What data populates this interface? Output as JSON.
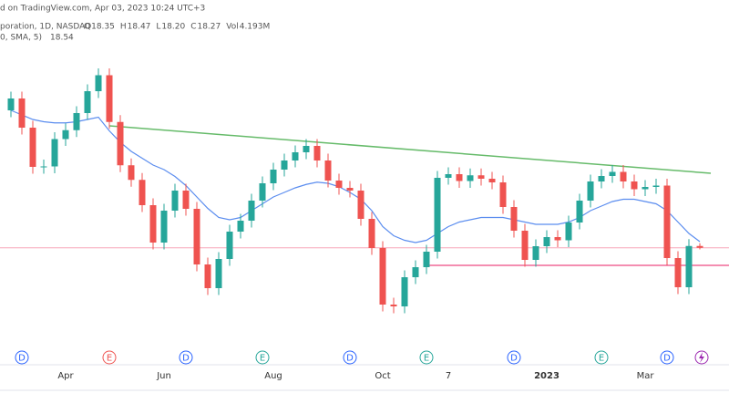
{
  "header": {
    "source": "d on TradingView.com, Apr 03, 2023 10:24 UTC+3",
    "symbol": "poration, 1D, NASDAQ",
    "ohlc": [
      {
        "label": "O",
        "value": "18.35"
      },
      {
        "label": "H",
        "value": "18.47"
      },
      {
        "label": "L",
        "value": "18.20"
      },
      {
        "label": "C",
        "value": "18.27"
      },
      {
        "label": "Vol",
        "value": "4.193M"
      }
    ],
    "sma_label": "0, SMA, 5)",
    "sma_value": "18.54"
  },
  "chart_data": {
    "type": "candlestick",
    "categories": [
      null,
      null,
      null,
      null,
      null,
      "Apr",
      null,
      null,
      null,
      null,
      null,
      null,
      null,
      null,
      "Jun",
      null,
      null,
      null,
      null,
      null,
      null,
      null,
      null,
      null,
      "Aug",
      null,
      null,
      null,
      null,
      null,
      null,
      null,
      null,
      null,
      "Oct",
      null,
      null,
      null,
      null,
      null,
      "7",
      null,
      null,
      null,
      null,
      null,
      null,
      null,
      null,
      "2023",
      null,
      null,
      null,
      null,
      null,
      null,
      null,
      null,
      "Mar",
      null,
      null,
      null,
      null,
      null
    ],
    "open": [
      24.3,
      24.82,
      23.54,
      21.82,
      21.84,
      23.04,
      23.43,
      24.18,
      25.14,
      25.84,
      23.79,
      21.89,
      21.25,
      20.14,
      18.5,
      19.9,
      20.78,
      19.98,
      17.54,
      16.5,
      17.78,
      18.98,
      19.46,
      20.34,
      21.1,
      21.7,
      22.1,
      22.46,
      22.74,
      22.1,
      21.22,
      20.9,
      20.78,
      19.54,
      18.26,
      15.78,
      15.7,
      16.98,
      17.42,
      18.1,
      21.34,
      21.5,
      21.2,
      21.45,
      21.3,
      21.14,
      20.06,
      19.02,
      17.74,
      18.34,
      18.74,
      18.6,
      19.38,
      20.34,
      21.18,
      21.42,
      21.6,
      21.18,
      20.84,
      20.94,
      21.0,
      17.82,
      16.54,
      18.35
    ],
    "high": [
      25.12,
      25.12,
      23.84,
      22.14,
      23.34,
      23.73,
      24.48,
      25.44,
      26.14,
      26.14,
      24.09,
      22.19,
      21.55,
      20.44,
      20.2,
      21.08,
      21.08,
      20.28,
      17.84,
      18.08,
      19.28,
      19.76,
      20.64,
      21.4,
      22.0,
      22.4,
      22.76,
      23.04,
      23.04,
      22.4,
      21.52,
      21.2,
      21.08,
      19.84,
      18.56,
      16.08,
      17.28,
      17.72,
      18.4,
      21.64,
      21.8,
      21.8,
      21.75,
      21.75,
      21.6,
      21.44,
      20.36,
      19.32,
      18.64,
      19.04,
      19.04,
      19.68,
      20.64,
      21.48,
      21.72,
      21.9,
      21.9,
      21.48,
      21.24,
      21.3,
      21.3,
      18.12,
      18.65,
      18.47
    ],
    "low": [
      24.0,
      23.24,
      21.52,
      21.52,
      21.54,
      22.74,
      23.13,
      23.88,
      24.84,
      23.49,
      21.59,
      20.95,
      19.84,
      18.2,
      18.2,
      19.6,
      19.68,
      17.24,
      16.2,
      16.2,
      17.48,
      18.68,
      19.16,
      20.04,
      20.8,
      21.4,
      21.8,
      22.16,
      21.8,
      20.92,
      20.6,
      20.48,
      19.24,
      17.96,
      15.48,
      15.4,
      15.4,
      16.68,
      17.12,
      17.8,
      21.04,
      20.9,
      20.9,
      21.0,
      20.84,
      19.76,
      18.72,
      17.44,
      17.44,
      18.04,
      18.3,
      18.3,
      19.08,
      20.04,
      20.88,
      21.12,
      20.88,
      20.54,
      20.54,
      20.64,
      17.52,
      16.24,
      16.24,
      18.2
    ],
    "close": [
      24.82,
      23.54,
      21.82,
      21.84,
      23.04,
      23.43,
      24.18,
      25.14,
      25.84,
      23.79,
      21.89,
      21.25,
      20.14,
      18.5,
      19.9,
      20.78,
      19.98,
      17.54,
      16.5,
      17.78,
      18.98,
      19.46,
      20.34,
      21.1,
      21.7,
      22.1,
      22.46,
      22.74,
      22.1,
      21.22,
      20.9,
      20.78,
      19.54,
      18.26,
      15.78,
      15.7,
      16.98,
      17.42,
      18.1,
      21.34,
      21.5,
      21.2,
      21.45,
      21.3,
      21.14,
      20.06,
      19.02,
      17.74,
      18.34,
      18.74,
      18.6,
      19.38,
      20.34,
      21.18,
      21.42,
      21.6,
      21.18,
      20.84,
      20.94,
      21.0,
      17.82,
      16.54,
      18.35,
      18.27
    ],
    "up_color": "#26a69a",
    "down_color": "#ef5350",
    "sma": {
      "color": "#5b8def",
      "values": [
        24.3,
        24.1,
        23.9,
        23.8,
        23.75,
        23.75,
        23.8,
        23.9,
        24.0,
        23.4,
        22.9,
        22.5,
        22.2,
        21.9,
        21.7,
        21.4,
        21.0,
        20.5,
        20.0,
        19.6,
        19.5,
        19.6,
        19.9,
        20.2,
        20.5,
        20.7,
        20.9,
        21.05,
        21.15,
        21.1,
        20.95,
        20.7,
        20.4,
        19.9,
        19.2,
        18.8,
        18.6,
        18.5,
        18.6,
        18.9,
        19.2,
        19.4,
        19.5,
        19.6,
        19.6,
        19.6,
        19.5,
        19.4,
        19.3,
        19.3,
        19.3,
        19.4,
        19.6,
        19.9,
        20.1,
        20.3,
        20.4,
        20.4,
        20.3,
        20.2,
        19.9,
        19.4,
        18.9,
        18.54
      ]
    },
    "trendline": {
      "color": "#66bb6a",
      "start": 9,
      "end": 64,
      "values": [
        23.62,
        21.54
      ]
    },
    "support": {
      "color": "#e91e63",
      "start": 38,
      "value": 17.5
    },
    "price_line_color": "#f8a5b8",
    "events": [
      null,
      "D",
      null,
      null,
      null,
      null,
      null,
      null,
      null,
      "E",
      null,
      null,
      null,
      null,
      null,
      null,
      "D",
      null,
      null,
      null,
      null,
      null,
      null,
      "E",
      null,
      null,
      null,
      null,
      null,
      null,
      null,
      "D",
      null,
      null,
      null,
      null,
      null,
      null,
      "E",
      null,
      null,
      null,
      null,
      null,
      null,
      null,
      "D",
      null,
      null,
      null,
      null,
      null,
      null,
      null,
      "E",
      null,
      null,
      null,
      null,
      null,
      "D",
      null,
      null,
      null
    ],
    "ylim": [
      14.14,
      27.54
    ]
  }
}
